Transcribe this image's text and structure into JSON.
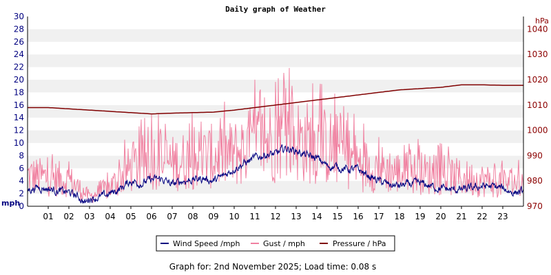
{
  "chart_data": {
    "type": "line",
    "title": "Daily graph of Weather",
    "y_left": {
      "unit": "mph",
      "range": [
        0,
        30
      ],
      "ticks": [
        0,
        2,
        4,
        6,
        8,
        10,
        12,
        14,
        16,
        18,
        20,
        22,
        24,
        26,
        28,
        30
      ]
    },
    "y_right": {
      "unit": "hPa",
      "range": [
        970,
        1045
      ],
      "ticks": [
        970,
        980,
        990,
        1000,
        1010,
        1020,
        1030,
        1040
      ]
    },
    "x": {
      "range": [
        0,
        24
      ],
      "ticks": [
        "01",
        "02",
        "03",
        "04",
        "05",
        "06",
        "07",
        "08",
        "09",
        "10",
        "11",
        "12",
        "13",
        "14",
        "15",
        "16",
        "17",
        "18",
        "19",
        "20",
        "21",
        "22",
        "23"
      ]
    },
    "grid": "horizontal-bands",
    "legend_position": "bottom",
    "series": [
      {
        "name": "Wind Speed /mph",
        "color": "#000080",
        "axis": "left",
        "points": [
          [
            0,
            2.6
          ],
          [
            0.5,
            3.0
          ],
          [
            1,
            2.8
          ],
          [
            1.5,
            2.4
          ],
          [
            2,
            2.2
          ],
          [
            2.5,
            1.4
          ],
          [
            2.8,
            0.5
          ],
          [
            3,
            1.3
          ],
          [
            3.5,
            1.4
          ],
          [
            4,
            2.0
          ],
          [
            4.5,
            2.8
          ],
          [
            5,
            4.0
          ],
          [
            5.5,
            3.6
          ],
          [
            6,
            4.2
          ],
          [
            6.5,
            4.3
          ],
          [
            7,
            3.4
          ],
          [
            7.5,
            4.0
          ],
          [
            8,
            4.2
          ],
          [
            8.5,
            4.4
          ],
          [
            9,
            4.0
          ],
          [
            9.5,
            4.8
          ],
          [
            10,
            6.0
          ],
          [
            10.5,
            6.8
          ],
          [
            11,
            7.6
          ],
          [
            11.5,
            8.2
          ],
          [
            12,
            8.2
          ],
          [
            12.5,
            9.2
          ],
          [
            13,
            8.8
          ],
          [
            13.5,
            8.0
          ],
          [
            14,
            7.6
          ],
          [
            14.5,
            6.4
          ],
          [
            15,
            6.2
          ],
          [
            15.5,
            5.8
          ],
          [
            16,
            5.8
          ],
          [
            16.5,
            4.8
          ],
          [
            17,
            4.0
          ],
          [
            17.5,
            3.4
          ],
          [
            18,
            3.2
          ],
          [
            18.5,
            3.5
          ],
          [
            19,
            3.6
          ],
          [
            19.5,
            3.2
          ],
          [
            20,
            2.8
          ],
          [
            20.5,
            2.6
          ],
          [
            21,
            2.6
          ],
          [
            21.5,
            2.8
          ],
          [
            22,
            3.2
          ],
          [
            22.5,
            3.1
          ],
          [
            23,
            2.8
          ],
          [
            23.5,
            2.2
          ],
          [
            24,
            2.3
          ]
        ]
      },
      {
        "name": "Gust / mph",
        "color": "#f080a0",
        "axis": "left",
        "points": [
          [
            0,
            6.5
          ],
          [
            1,
            6.0
          ],
          [
            2,
            5.5
          ],
          [
            3,
            2.0
          ],
          [
            4,
            4.0
          ],
          [
            5,
            8.0
          ],
          [
            6,
            10.0
          ],
          [
            7,
            9.0
          ],
          [
            8,
            10.0
          ],
          [
            9,
            10.5
          ],
          [
            10,
            11.0
          ],
          [
            11,
            13.0
          ],
          [
            12,
            14.0
          ],
          [
            12.5,
            15.5
          ],
          [
            13,
            14.0
          ],
          [
            14,
            13.0
          ],
          [
            15,
            12.0
          ],
          [
            16,
            9.0
          ],
          [
            17,
            8.0
          ],
          [
            18,
            7.0
          ],
          [
            19,
            7.0
          ],
          [
            20,
            6.5
          ],
          [
            21,
            6.0
          ],
          [
            22,
            5.5
          ],
          [
            23,
            5.0
          ],
          [
            24,
            5.0
          ]
        ]
      },
      {
        "name": "Pressure / hPa",
        "color": "#800000",
        "axis": "right",
        "points": [
          [
            0,
            1009
          ],
          [
            1,
            1009
          ],
          [
            2,
            1008.5
          ],
          [
            3,
            1008
          ],
          [
            4,
            1007.5
          ],
          [
            5,
            1007
          ],
          [
            6,
            1006.5
          ],
          [
            7,
            1006.8
          ],
          [
            8,
            1007
          ],
          [
            9,
            1007.2
          ],
          [
            10,
            1008
          ],
          [
            11,
            1009
          ],
          [
            12,
            1010
          ],
          [
            13,
            1011
          ],
          [
            14,
            1012
          ],
          [
            15,
            1013
          ],
          [
            16,
            1014
          ],
          [
            17,
            1015
          ],
          [
            18,
            1016
          ],
          [
            19,
            1016.5
          ],
          [
            20,
            1017
          ],
          [
            21,
            1018
          ],
          [
            22,
            1018
          ],
          [
            23,
            1017.8
          ],
          [
            24,
            1017.8
          ]
        ]
      }
    ]
  },
  "footer": "Graph for: 2nd November 2025; Load time: 0.08 s"
}
